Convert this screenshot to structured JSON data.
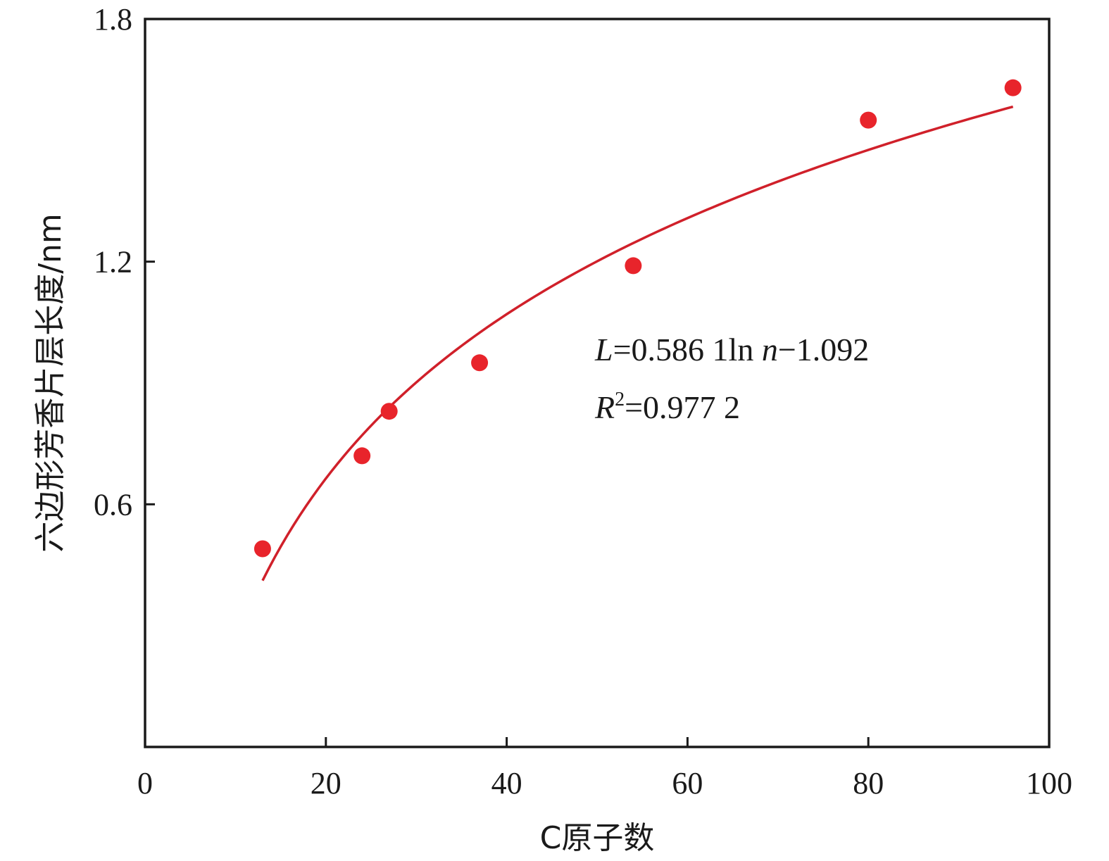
{
  "chart_data": {
    "type": "scatter",
    "xlabel": "C原子数",
    "ylabel": "六边形芳香片层长度/nm",
    "xlim": [
      0,
      100
    ],
    "ylim": [
      0,
      1.8
    ],
    "x_ticks": [
      {
        "value": 0,
        "label": "0"
      },
      {
        "value": 20,
        "label": "20"
      },
      {
        "value": 40,
        "label": "40"
      },
      {
        "value": 60,
        "label": "60"
      },
      {
        "value": 80,
        "label": "80"
      },
      {
        "value": 100,
        "label": "100"
      }
    ],
    "y_ticks": [
      {
        "value": 0.6,
        "label": "0.6"
      },
      {
        "value": 1.2,
        "label": "1.2"
      },
      {
        "value": 1.8,
        "label": "1.8"
      }
    ],
    "series": [
      {
        "marker_color": "#e8242b",
        "points": [
          {
            "x": 13,
            "y": 0.49
          },
          {
            "x": 24,
            "y": 0.72
          },
          {
            "x": 27,
            "y": 0.83
          },
          {
            "x": 37,
            "y": 0.95
          },
          {
            "x": 54,
            "y": 1.19
          },
          {
            "x": 80,
            "y": 1.55
          },
          {
            "x": 96,
            "y": 1.63
          }
        ]
      }
    ],
    "fit_line": {
      "model": "logarithmic",
      "coefficient": 0.5861,
      "intercept": -1.092,
      "x_range": [
        13,
        96
      ],
      "color": "#d0202a"
    },
    "annotation": {
      "equation": {
        "var": "L",
        "rest": "=0.586 1ln ",
        "arg": "n",
        "tail": "−1.092"
      },
      "r2": {
        "var": "R",
        "sup": "2",
        "rest": "=0.977 2"
      }
    },
    "grid": false,
    "legend": "none"
  }
}
